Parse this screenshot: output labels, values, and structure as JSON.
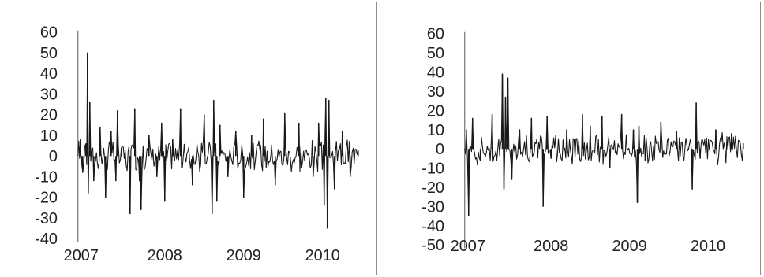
{
  "chart_data": [
    {
      "type": "line",
      "title": "",
      "xlabel": "",
      "ylabel": "",
      "ylim": [
        -40,
        60
      ],
      "y_ticks": [
        60,
        50,
        40,
        30,
        20,
        10,
        0,
        -10,
        -20,
        -30,
        -40
      ],
      "y_tick_labels": [
        "60",
        "50",
        "40",
        "30",
        "20",
        "10",
        "0",
        "-10",
        "-20",
        "-30",
        "-40"
      ],
      "x_tick_labels": [
        "2007",
        "2008",
        "2009",
        "2010"
      ],
      "xlim": [
        2007.0,
        2010.58
      ],
      "grid": false,
      "line_color": "#1a1a1a",
      "series": [
        {
          "x": [
            2007.0,
            2007.03,
            2007.06,
            2007.1,
            2007.12,
            2007.13,
            2007.15,
            2007.2,
            2007.28,
            2007.35,
            2007.42,
            2007.48,
            2007.5,
            2007.55,
            2007.66,
            2007.72,
            2007.78,
            2007.8,
            2007.9,
            2008.0,
            2008.06,
            2008.1,
            2008.2,
            2008.3,
            2008.45,
            2008.6,
            2008.7,
            2008.72,
            2008.76,
            2008.8,
            2008.9,
            2009.0,
            2009.1,
            2009.2,
            2009.35,
            2009.5,
            2009.62,
            2009.8,
            2009.98,
            2010.05,
            2010.12,
            2010.14,
            2010.16,
            2010.18,
            2010.25,
            2010.35,
            2010.45,
            2010.55
          ],
          "y": [
            0,
            8,
            -8,
            6,
            50,
            -18,
            26,
            -12,
            14,
            -20,
            12,
            -12,
            22,
            4,
            -28,
            23,
            -12,
            -26,
            10,
            -10,
            16,
            -22,
            8,
            23,
            -14,
            20,
            -28,
            27,
            -22,
            15,
            -10,
            12,
            -20,
            10,
            18,
            -14,
            21,
            16,
            -10,
            16,
            -24,
            28,
            -35,
            27,
            -16,
            12,
            -10,
            3
          ]
        }
      ]
    },
    {
      "type": "line",
      "title": "",
      "xlabel": "",
      "ylabel": "",
      "ylim": [
        -50,
        60
      ],
      "y_ticks": [
        60,
        50,
        40,
        30,
        20,
        10,
        0,
        -10,
        -20,
        -30,
        -40,
        -50
      ],
      "y_tick_labels": [
        "60",
        "50",
        "40",
        "30",
        "20",
        "10",
        "0",
        "-10",
        "-20",
        "-30",
        "-40",
        "-50"
      ],
      "x_tick_labels": [
        "2007",
        "2008",
        "2009",
        "2010"
      ],
      "xlim": [
        2007.0,
        2010.58
      ],
      "grid": false,
      "line_color": "#1a1a1a",
      "series": [
        {
          "x": [
            2007.0,
            2007.02,
            2007.05,
            2007.1,
            2007.2,
            2007.35,
            2007.48,
            2007.5,
            2007.52,
            2007.55,
            2007.6,
            2007.7,
            2007.85,
            2008.0,
            2008.05,
            2008.1,
            2008.3,
            2008.5,
            2008.6,
            2008.75,
            2008.85,
            2009.0,
            2009.15,
            2009.2,
            2009.22,
            2009.3,
            2009.5,
            2009.7,
            2009.9,
            2009.95,
            2010.0,
            2010.2,
            2010.4,
            2010.55
          ],
          "y": [
            0,
            10,
            -35,
            16,
            -6,
            18,
            39,
            -21,
            27,
            37,
            -16,
            10,
            16,
            -30,
            17,
            -5,
            10,
            18,
            12,
            17,
            -10,
            18,
            10,
            -28,
            12,
            -6,
            14,
            9,
            -21,
            24,
            -5,
            10,
            8,
            3
          ]
        }
      ]
    }
  ]
}
